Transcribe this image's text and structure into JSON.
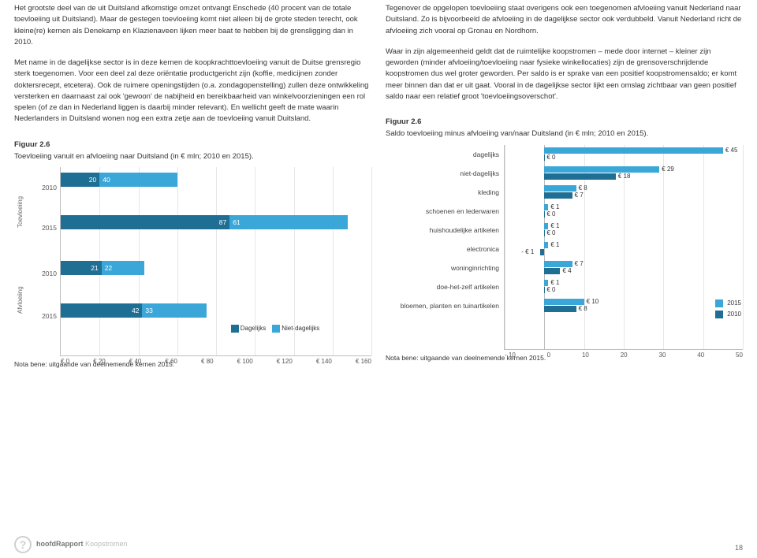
{
  "colors": {
    "text": "#333333",
    "series2015": "#3ba7d9",
    "series2010": "#1f6f94",
    "grid": "#e6e6e6",
    "axis": "#bdbdbd",
    "muted": "#888888"
  },
  "leftCol": {
    "p1": "Het grootste deel van de uit Duitsland afkomstige omzet ontvangt Enschede (40 procent van de totale toevloeiing uit Duitsland). Maar de gestegen toevloeiing komt niet alleen bij de grote steden terecht, ook kleine(re) kernen als Denekamp en Klazienaveen lijken meer baat te hebben bij de grensligging dan in 2010.",
    "p2": "Met name in de dagelijkse sector is in deze kernen de koopkrachttoevloeiing vanuit de Duitse grensregio sterk toegenomen. Voor een deel zal deze oriëntatie productgericht zijn (koffie, medicijnen zonder doktersrecept, etcetera). Ook de ruimere openingstijden (o.a. zondagopenstelling) zullen deze ontwikkeling versterken en daarnaast zal ook 'gewoon' de nabijheid en bereikbaarheid van winkelvoorzieningen een rol spelen (of ze dan in Nederland liggen is daarbij minder relevant). En wellicht geeft de mate waarin Nederlanders in Duitsland wonen nog een extra zetje aan de toevloeiing vanuit Duitsland.",
    "figTitle": "Figuur 2.6",
    "figSub": "Toevloeiing vanuit en afvloeiing naar Duitsland (in € mln; 2010 en 2015).",
    "nota": "Nota bene: uitgaande van deelnemende kernen 2015."
  },
  "rightCol": {
    "p1": "Tegenover de opgelopen toevloeiing staat overigens ook een toegenomen afvloeiing vanuit Nederland naar Duitsland. Zo is bijvoorbeeld de afvloeiing in de dagelijkse sector ook verdubbeld. Vanuit Nederland richt de afvloeiing zich vooral op Gronau en Nordhorn.",
    "p2": "Waar in zijn algemeenheid geldt dat de ruimtelijke koopstromen – mede door internet – kleiner zijn geworden (minder afvloeiing/toevloeiing naar fysieke winkellocaties) zijn de grensoverschrijdende koopstromen dus wel groter geworden. Per saldo is er sprake van een positief koopstromensaldo; er komt meer binnen dan dat er uit gaat. Vooral in de dagelijkse sector lijkt een omslag zichtbaar van geen positief saldo naar een relatief groot 'toevloeiingsoverschot'.",
    "figTitle": "Figuur 2.6",
    "figSub": "Saldo toevloeiing minus afvloeiing van/naar Duitsland (in € mln; 2010 en 2015).",
    "nota": "Nota bene: uitgaande van deelnemende kernen 2015."
  },
  "chartLeft": {
    "xmin": 0,
    "xmax": 160,
    "xticks": [
      "€ 0",
      "€ 20",
      "€ 40",
      "€ 60",
      "€ 80",
      "€ 100",
      "€ 120",
      "€ 140",
      "€ 160"
    ],
    "groups": [
      {
        "group": "Toevloeiing",
        "rows": [
          {
            "year": "2010",
            "dagelijks": 20,
            "niet_dagelijks": 40
          },
          {
            "year": "2015",
            "dagelijks": 87,
            "niet_dagelijks": 61
          }
        ]
      },
      {
        "group": "Afvloeiing",
        "rows": [
          {
            "year": "2010",
            "dagelijks": 21,
            "niet_dagelijks": 22
          },
          {
            "year": "2015",
            "dagelijks": 42,
            "niet_dagelijks": 33
          }
        ]
      }
    ],
    "legend": [
      "Dagelijks",
      "Niet-dagelijks"
    ],
    "legendColors": [
      "#1f6f94",
      "#3ba7d9"
    ]
  },
  "chartRight": {
    "xmin": -10,
    "xmax": 50,
    "xticks": [
      "- 10",
      "0",
      "10",
      "20",
      "30",
      "40",
      "50"
    ],
    "categories": [
      {
        "label": "dagelijks",
        "v2015": 45,
        "v2010": 0
      },
      {
        "label": "niet-dagelijks",
        "v2015": 29,
        "v2010": 18
      },
      {
        "label": "kleding",
        "v2015": 8,
        "v2010": 7
      },
      {
        "label": "schoenen en lederwaren",
        "v2015": 1,
        "v2010": 0
      },
      {
        "label": "huishoudelijke artikelen",
        "v2015": 1,
        "v2010": 0
      },
      {
        "label": "electronica",
        "v2015": 1,
        "v2010": -1
      },
      {
        "label": "woninginrichting",
        "v2015": 7,
        "v2010": 4
      },
      {
        "label": "doe-het-zelf artikelen",
        "v2015": 1,
        "v2010": 0
      },
      {
        "label": "bloemen, planten en tuinartikelen",
        "v2015": 10,
        "v2010": 8
      }
    ],
    "legend": [
      {
        "label": "2015",
        "color": "#3ba7d9"
      },
      {
        "label": "2010",
        "color": "#1f6f94"
      }
    ]
  },
  "footer": {
    "brandBold": "hoofdRapport",
    "brandSub": "Koopstromen",
    "pageNum": "18"
  }
}
